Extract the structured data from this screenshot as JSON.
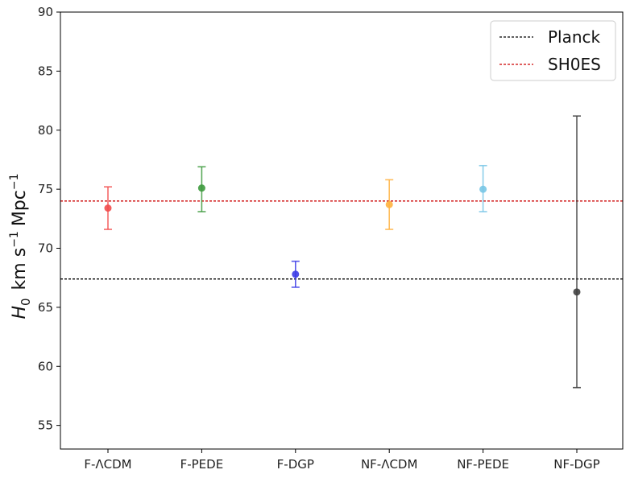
{
  "chart_data": {
    "type": "scatter",
    "title": "",
    "xlabel": "",
    "ylabel": "H₀ km s⁻¹ Mpc⁻¹",
    "ylabel_parts": {
      "symbol": "H",
      "subscript": "0",
      "unit1": "km s",
      "exp1": "−1",
      "unit2": "Mpc",
      "exp2": "−1"
    },
    "ylim": [
      53,
      90
    ],
    "yticks": [
      "55",
      "60",
      "65",
      "70",
      "75",
      "80",
      "85",
      "90"
    ],
    "grid": false,
    "legend_position": "top-right",
    "categories": [
      "F-ΛCDM",
      "F-PEDE",
      "F-DGP",
      "NF-ΛCDM",
      "NF-PEDE",
      "NF-DGP"
    ],
    "points": [
      {
        "category": "F-ΛCDM",
        "value": 73.4,
        "lower": 71.6,
        "upper": 75.2,
        "color": "#f24d4d"
      },
      {
        "category": "F-PEDE",
        "value": 75.1,
        "lower": 73.1,
        "upper": 76.9,
        "color": "#3d9a3d"
      },
      {
        "category": "F-DGP",
        "value": 67.8,
        "lower": 66.7,
        "upper": 68.9,
        "color": "#3b3be6"
      },
      {
        "category": "NF-ΛCDM",
        "value": 73.7,
        "lower": 71.6,
        "upper": 75.8,
        "color": "#ffb23f"
      },
      {
        "category": "NF-PEDE",
        "value": 75.0,
        "lower": 73.1,
        "upper": 77.0,
        "color": "#78c6e6"
      },
      {
        "category": "NF-DGP",
        "value": 66.3,
        "lower": 58.2,
        "upper": 81.2,
        "color": "#404040"
      }
    ],
    "reference_lines": [
      {
        "name": "Planck",
        "value": 67.4,
        "color": "#000000"
      },
      {
        "name": "SH0ES",
        "value": 74.0,
        "color": "#cc0000"
      }
    ]
  }
}
